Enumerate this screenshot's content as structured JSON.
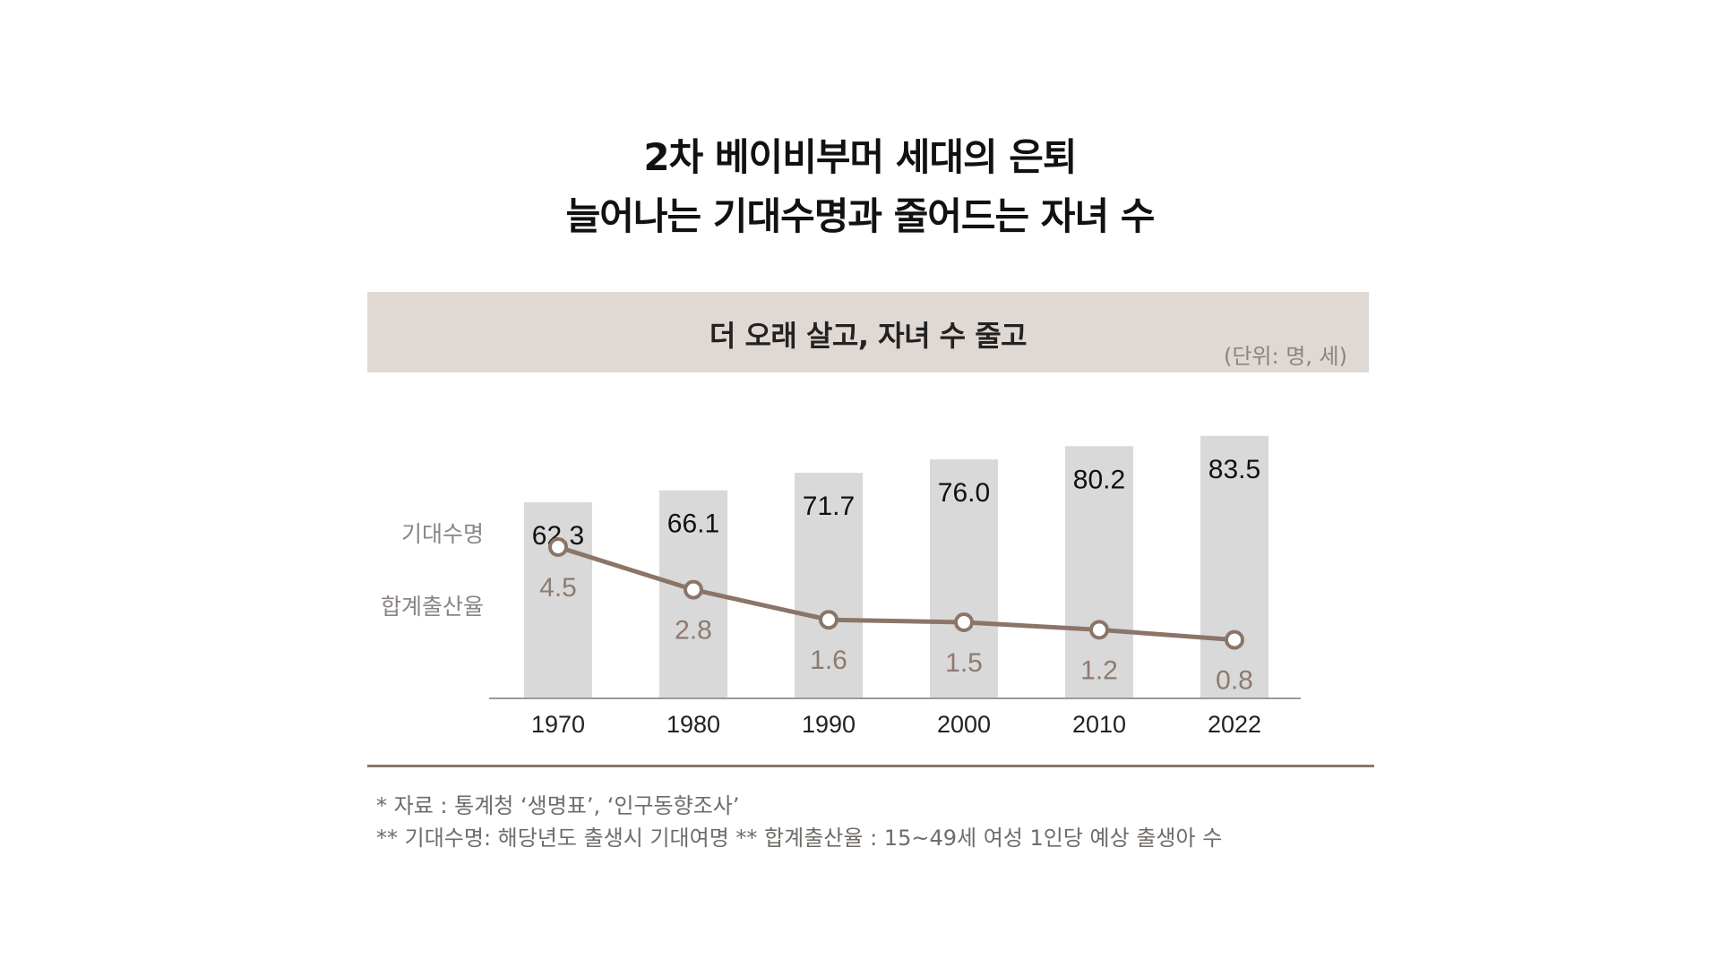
{
  "title": {
    "line1": "2차 베이비부머 세대의 은퇴",
    "line2": "늘어나는 기대수명과 줄어드는 자녀 수"
  },
  "banner": {
    "title": "더 오래 살고, 자녀 수 줄고",
    "unit": "(단위: 명, 세)"
  },
  "colors": {
    "bar": "#d9d9d9",
    "line": "#8a7569",
    "tfr_text": "#8f7a6e",
    "banner_bg": "#e0d8d3"
  },
  "chart_data": {
    "type": "bar",
    "title": "더 오래 살고, 자녀 수 줄고",
    "categories": [
      "1970",
      "1980",
      "1990",
      "2000",
      "2010",
      "2022"
    ],
    "series": [
      {
        "name": "기대수명",
        "type": "bar",
        "values": [
          62.3,
          66.1,
          71.7,
          76.0,
          80.2,
          83.5
        ],
        "labels": [
          "62.3",
          "66.1",
          "71.7",
          "76.0",
          "80.2",
          "83.5"
        ]
      },
      {
        "name": "합계출산율",
        "type": "line",
        "values": [
          4.5,
          2.8,
          1.6,
          1.5,
          1.2,
          0.8
        ],
        "labels": [
          "4.5",
          "2.8",
          "1.6",
          "1.5",
          "1.2",
          "0.8"
        ]
      }
    ],
    "unit": "(단위: 명, 세)",
    "legend": "left"
  },
  "notes": {
    "source": "* 자료 : 통계청 ‘생명표’, ‘인구동향조사’",
    "definitions": "** 기대수명:  해당년도 출생시 기대여명  ** 합계출산율 : 15~49세 여성 1인당 예상 출생아 수"
  }
}
